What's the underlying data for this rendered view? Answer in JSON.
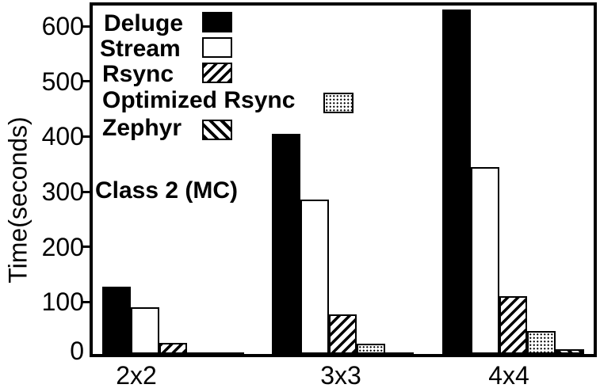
{
  "chart_data": {
    "type": "bar",
    "title": "",
    "xlabel": "",
    "ylabel": "Time(seconds)",
    "annotation": "Class 2 (MC)",
    "categories": [
      "2x2",
      "3x3",
      "4x4"
    ],
    "series": [
      {
        "name": "Deluge",
        "pattern": "solid-black",
        "values": [
          128,
          405,
          630
        ]
      },
      {
        "name": "Stream",
        "pattern": "white",
        "values": [
          90,
          286,
          345
        ]
      },
      {
        "name": "Rsync",
        "pattern": "hatch-forward",
        "values": [
          26,
          78,
          110
        ]
      },
      {
        "name": "Optimized Rsync",
        "pattern": "dots",
        "values": [
          6,
          24,
          47
        ]
      },
      {
        "name": "Zephyr",
        "pattern": "hatch-back",
        "values": [
          2,
          7,
          14
        ]
      }
    ],
    "y_ticks": [
      0,
      100,
      200,
      300,
      400,
      500,
      600
    ],
    "ylim": [
      0,
      643
    ],
    "grid": false,
    "legend_position": "top-left-inside",
    "colors": {
      "foreground": "#000000",
      "background": "#ffffff"
    }
  }
}
